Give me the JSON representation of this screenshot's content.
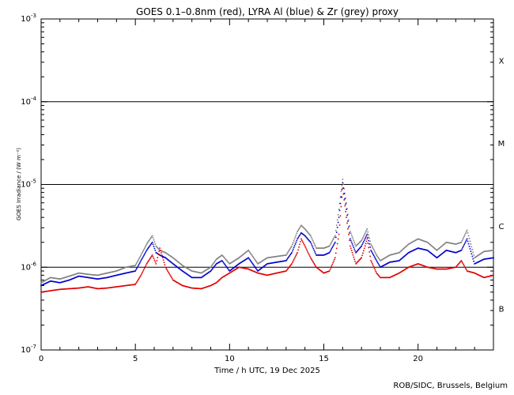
{
  "chart_data": {
    "type": "scatter",
    "title": "GOES 0.1–0.8nm (red), LYRA Al (blue) & Zr (grey) proxy",
    "xlabel": "Time / h UTC, 19 Dec 2025",
    "ylabel": "GOES Irradiance / (W m⁻²)",
    "xlim": [
      0,
      24
    ],
    "ylim": [
      1e-07,
      0.001
    ],
    "yscale": "log",
    "xticks": [
      0,
      5,
      10,
      15,
      20
    ],
    "yticks": [
      {
        "mantissa": "10",
        "exp": "-7"
      },
      {
        "mantissa": "10",
        "exp": "-6"
      },
      {
        "mantissa": "10",
        "exp": "-5"
      },
      {
        "mantissa": "10",
        "exp": "-4"
      },
      {
        "mantissa": "10",
        "exp": "-3"
      }
    ],
    "class_lines": [
      1e-06,
      1e-05,
      0.0001
    ],
    "flare_classes": [
      {
        "label": "B",
        "y": 3.16e-07
      },
      {
        "label": "C",
        "y": 3.16e-06
      },
      {
        "label": "M",
        "y": 3.16e-05
      },
      {
        "label": "X",
        "y": 0.000316
      }
    ],
    "series": [
      {
        "color": "#e00000",
        "x": [
          0,
          0.5,
          1,
          1.5,
          2,
          2.5,
          3,
          3.5,
          4,
          4.5,
          5,
          5.3,
          5.6,
          5.9,
          6.1,
          6.3,
          6.6,
          7,
          7.5,
          8,
          8.5,
          9,
          9.3,
          9.6,
          10,
          10.5,
          11,
          11.5,
          12,
          12.5,
          13,
          13.3,
          13.6,
          13.8,
          14,
          14.3,
          14.6,
          15,
          15.3,
          15.6,
          15.8,
          16,
          16.2,
          16.4,
          16.7,
          17,
          17.3,
          17.5,
          17.8,
          18,
          18.5,
          19,
          19.5,
          20,
          20.5,
          21,
          21.5,
          22,
          22.3,
          22.6,
          23,
          23.5,
          24
        ],
        "values": [
          5e-07,
          5.2e-07,
          5.4e-07,
          5.5e-07,
          5.6e-07,
          5.8e-07,
          5.5e-07,
          5.6e-07,
          5.8e-07,
          6e-07,
          6.2e-07,
          8e-07,
          1.1e-06,
          1.4e-06,
          1.1e-06,
          1.7e-06,
          1e-06,
          7e-07,
          6e-07,
          5.6e-07,
          5.5e-07,
          6e-07,
          6.5e-07,
          7.5e-07,
          8.5e-07,
          1e-06,
          9.5e-07,
          8.5e-07,
          8e-07,
          8.5e-07,
          9e-07,
          1.1e-06,
          1.5e-06,
          2.2e-06,
          1.8e-06,
          1.3e-06,
          1e-06,
          8.5e-07,
          9e-07,
          1.3e-06,
          2.5e-06,
          9e-06,
          4e-06,
          1.8e-06,
          1.1e-06,
          1.3e-06,
          2.2e-06,
          1.2e-06,
          8.5e-07,
          7.5e-07,
          7.5e-07,
          8.5e-07,
          1e-06,
          1.1e-06,
          1e-06,
          9.5e-07,
          9.5e-07,
          1e-06,
          1.2e-06,
          9e-07,
          8.5e-07,
          7.5e-07,
          8e-07
        ]
      },
      {
        "color": "#0000cc",
        "x": [
          0,
          0.5,
          1,
          1.5,
          2,
          2.5,
          3,
          3.5,
          4,
          4.5,
          5,
          5.3,
          5.6,
          5.9,
          6.1,
          6.3,
          6.6,
          7,
          7.5,
          8,
          8.5,
          9,
          9.3,
          9.6,
          10,
          10.5,
          11,
          11.5,
          12,
          12.5,
          13,
          13.3,
          13.6,
          13.8,
          14,
          14.3,
          14.6,
          15,
          15.3,
          15.6,
          15.8,
          16,
          16.2,
          16.4,
          16.7,
          17,
          17.3,
          17.5,
          17.8,
          18,
          18.5,
          19,
          19.5,
          20,
          20.5,
          21,
          21.5,
          22,
          22.3,
          22.6,
          23,
          23.5,
          24
        ],
        "values": [
          6e-07,
          6.8e-07,
          6.5e-07,
          7e-07,
          7.8e-07,
          7.5e-07,
          7.2e-07,
          7.5e-07,
          8e-07,
          8.5e-07,
          9e-07,
          1.2e-06,
          1.6e-06,
          2e-06,
          1.5e-06,
          1.4e-06,
          1.3e-06,
          1.1e-06,
          9e-07,
          7.5e-07,
          7.5e-07,
          9e-07,
          1.1e-06,
          1.2e-06,
          9e-07,
          1.1e-06,
          1.3e-06,
          9e-07,
          1.1e-06,
          1.15e-06,
          1.2e-06,
          1.5e-06,
          2.2e-06,
          2.6e-06,
          2.4e-06,
          2e-06,
          1.4e-06,
          1.4e-06,
          1.5e-06,
          2e-06,
          4e-06,
          1.05e-05,
          5e-06,
          2.2e-06,
          1.5e-06,
          1.8e-06,
          2.5e-06,
          1.6e-06,
          1.2e-06,
          1e-06,
          1.15e-06,
          1.2e-06,
          1.5e-06,
          1.7e-06,
          1.6e-06,
          1.3e-06,
          1.6e-06,
          1.5e-06,
          1.6e-06,
          2.2e-06,
          1.1e-06,
          1.25e-06,
          1.3e-06
        ]
      },
      {
        "color": "#808080",
        "x": [
          0,
          0.5,
          1,
          1.5,
          2,
          2.5,
          3,
          3.5,
          4,
          4.5,
          5,
          5.3,
          5.6,
          5.9,
          6.1,
          6.3,
          6.6,
          7,
          7.5,
          8,
          8.5,
          9,
          9.3,
          9.6,
          10,
          10.5,
          11,
          11.5,
          12,
          12.5,
          13,
          13.3,
          13.6,
          13.8,
          14,
          14.3,
          14.6,
          15,
          15.3,
          15.6,
          15.8,
          16,
          16.2,
          16.4,
          16.7,
          17,
          17.3,
          17.5,
          17.8,
          18,
          18.5,
          19,
          19.5,
          20,
          20.5,
          21,
          21.5,
          22,
          22.3,
          22.6,
          23,
          23.5,
          24
        ],
        "values": [
          6.5e-07,
          7.5e-07,
          7.2e-07,
          7.8e-07,
          8.5e-07,
          8.2e-07,
          8e-07,
          8.5e-07,
          9e-07,
          1e-06,
          1.05e-06,
          1.4e-06,
          1.9e-06,
          2.4e-06,
          1.8e-06,
          1.6e-06,
          1.5e-06,
          1.3e-06,
          1.05e-06,
          9e-07,
          8.5e-07,
          1e-06,
          1.25e-06,
          1.4e-06,
          1.1e-06,
          1.3e-06,
          1.6e-06,
          1.1e-06,
          1.3e-06,
          1.35e-06,
          1.4e-06,
          1.8e-06,
          2.7e-06,
          3.2e-06,
          2.9e-06,
          2.4e-06,
          1.7e-06,
          1.7e-06,
          1.8e-06,
          2.4e-06,
          5e-06,
          1.15e-05,
          6e-06,
          2.7e-06,
          1.8e-06,
          2.1e-06,
          2.9e-06,
          1.9e-06,
          1.4e-06,
          1.2e-06,
          1.4e-06,
          1.5e-06,
          1.9e-06,
          2.2e-06,
          2e-06,
          1.6e-06,
          2e-06,
          1.9e-06,
          2e-06,
          2.8e-06,
          1.3e-06,
          1.55e-06,
          1.6e-06
        ]
      }
    ]
  },
  "credit": "ROB/SIDC, Brussels, Belgium"
}
